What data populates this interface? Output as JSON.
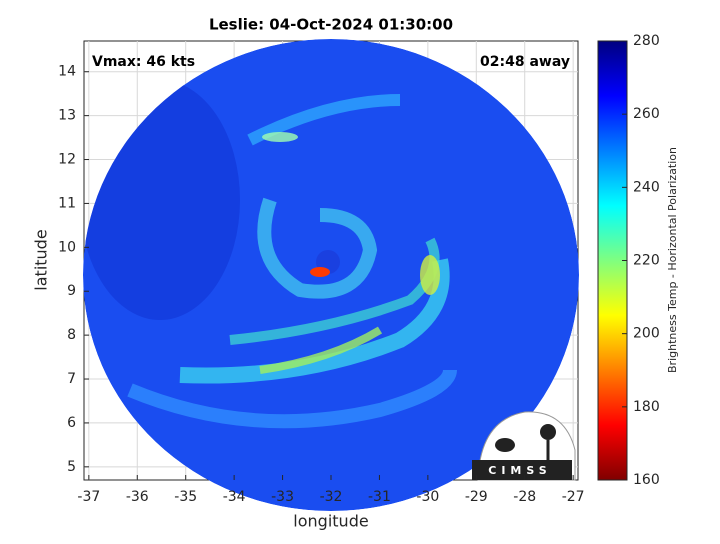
{
  "chart_data": {
    "type": "image",
    "title": "Leslie: 04-Oct-2024 01:30:00",
    "annotations": [
      "Vmax: 46 kts",
      "02:48 away"
    ],
    "x_label": "longitude",
    "y_label": "latitude",
    "xlim": [
      -37.1,
      -26.9
    ],
    "xticks": [
      -37,
      -36,
      -35,
      -34,
      -33,
      -32,
      -31,
      -30,
      -29,
      -28,
      -27
    ],
    "ylim": [
      4.7,
      14.7
    ],
    "yticks": [
      5,
      6,
      7,
      8,
      9,
      10,
      11,
      12,
      13,
      14
    ],
    "grid": true,
    "colorbar": {
      "label": "Brightness Temp - Horizontal Polarization",
      "colormap": "jet",
      "lim": [
        160,
        280
      ],
      "ticks": [
        160,
        180,
        200,
        220,
        240,
        260,
        280
      ]
    },
    "logo_text": "CIMSS"
  }
}
